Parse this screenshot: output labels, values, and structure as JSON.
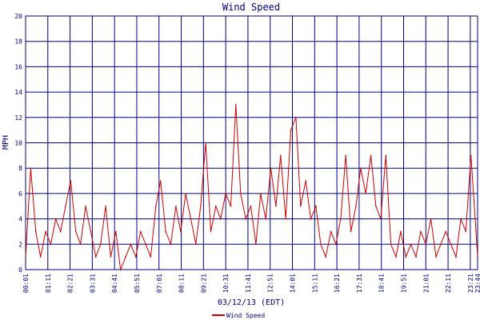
{
  "colors": {
    "grid": "#000080",
    "series": "#cc0000",
    "text": "#000080",
    "background": "#ffffff"
  },
  "chart_data": {
    "type": "line",
    "title": "Wind Speed",
    "xlabel": "03/12/13 (EDT)",
    "ylabel": "MPH",
    "ylim": [
      0,
      20
    ],
    "yticks": [
      "0",
      "2",
      "4",
      "6",
      "8",
      "10",
      "12",
      "14",
      "16",
      "18",
      "20"
    ],
    "xlim": [
      "00:01",
      "23:44"
    ],
    "xticks": [
      "00:01",
      "01:11",
      "02:21",
      "03:31",
      "04:41",
      "05:51",
      "07:01",
      "08:11",
      "09:21",
      "10:31",
      "11:41",
      "12:51",
      "14:01",
      "15:11",
      "16:21",
      "17:31",
      "18:41",
      "19:51",
      "21:01",
      "22:11",
      "23:21",
      "23:44"
    ],
    "grid": true,
    "legend_position": "bottom",
    "series": [
      {
        "name": "Wind Speed",
        "x": [
          "00:01",
          "00:17",
          "00:33",
          "00:48",
          "01:04",
          "01:20",
          "01:36",
          "01:51",
          "02:07",
          "02:23",
          "02:39",
          "02:54",
          "03:10",
          "03:26",
          "03:42",
          "03:57",
          "04:13",
          "04:29",
          "04:45",
          "05:00",
          "05:16",
          "05:32",
          "05:48",
          "06:03",
          "06:19",
          "06:35",
          "06:51",
          "07:06",
          "07:22",
          "07:38",
          "07:54",
          "08:09",
          "08:25",
          "08:41",
          "08:57",
          "09:12",
          "09:28",
          "09:44",
          "10:00",
          "10:15",
          "10:31",
          "10:47",
          "11:03",
          "11:18",
          "11:34",
          "11:50",
          "12:06",
          "12:21",
          "12:37",
          "12:53",
          "13:09",
          "13:24",
          "13:40",
          "13:56",
          "14:12",
          "14:27",
          "14:43",
          "14:59",
          "15:15",
          "15:30",
          "15:46",
          "16:02",
          "16:18",
          "16:33",
          "16:49",
          "17:05",
          "17:21",
          "17:36",
          "17:52",
          "18:08",
          "18:24",
          "18:39",
          "18:55",
          "19:11",
          "19:27",
          "19:42",
          "19:58",
          "20:14",
          "20:30",
          "20:45",
          "21:01",
          "21:17",
          "21:33",
          "21:48",
          "22:04",
          "22:20",
          "22:36",
          "22:51",
          "23:07",
          "23:23",
          "23:39",
          "23:44"
        ],
        "values": [
          1,
          8,
          3,
          1,
          3,
          2,
          4,
          3,
          5,
          7,
          3,
          2,
          5,
          3,
          1,
          2,
          5,
          1,
          3,
          0,
          1,
          2,
          1,
          3,
          2,
          1,
          5,
          7,
          3,
          2,
          5,
          3,
          6,
          4,
          2,
          5,
          10,
          3,
          5,
          4,
          6,
          5,
          13,
          6,
          4,
          5,
          2,
          6,
          4,
          8,
          5,
          9,
          4,
          11,
          12,
          5,
          7,
          4,
          5,
          2,
          1,
          3,
          2,
          4,
          9,
          3,
          5,
          8,
          6,
          9,
          5,
          4,
          9,
          2,
          1,
          3,
          1,
          2,
          1,
          3,
          2,
          4,
          1,
          2,
          3,
          2,
          1,
          4,
          3,
          9,
          3,
          1
        ]
      }
    ]
  }
}
